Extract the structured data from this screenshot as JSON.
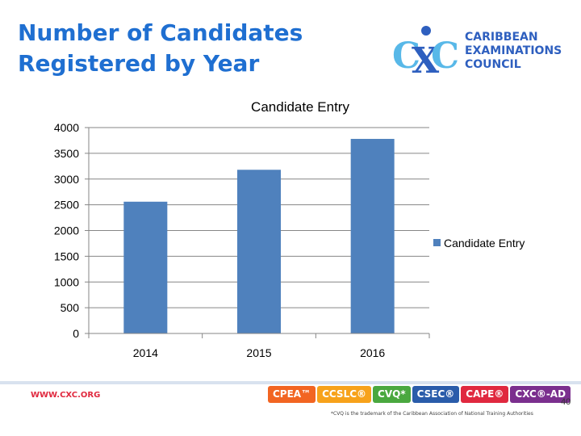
{
  "slide": {
    "title_line1": "Number of Candidates",
    "title_line2": "Registered by Year"
  },
  "logo": {
    "line1": "CARIBBEAN",
    "line2": "EXAMINATIONS",
    "line3": "COUNCIL",
    "colors": {
      "primary": "#2e5fbf",
      "accent": "#58b8e8"
    }
  },
  "chart_data": {
    "type": "bar",
    "title": "Candidate Entry",
    "categories": [
      "2014",
      "2015",
      "2016"
    ],
    "series": [
      {
        "name": "Candidate Entry",
        "values": [
          2560,
          3180,
          3780
        ],
        "color": "#4f81bd"
      }
    ],
    "ylim": [
      0,
      4000
    ],
    "yticks": [
      0,
      500,
      1000,
      1500,
      2000,
      2500,
      3000,
      3500,
      4000
    ],
    "grid": true,
    "legend": "right",
    "xlabel": "",
    "ylabel": ""
  },
  "footer": {
    "url": "WWW.CXC.ORG",
    "page_number": "40",
    "footnote": "*CVQ is the trademark of the Caribbean Association of National Training Authorities",
    "badges": [
      {
        "label": "CPEA™",
        "color": "#f26522"
      },
      {
        "label": "CCSLC®",
        "color": "#f7a21b"
      },
      {
        "label": "CVQ*",
        "color": "#4aa83f"
      },
      {
        "label": "CSEC®",
        "color": "#2a5caa"
      },
      {
        "label": "CAPE®",
        "color": "#e0293f"
      },
      {
        "label": "CXC®-AD",
        "color": "#7b2f8e"
      }
    ]
  }
}
